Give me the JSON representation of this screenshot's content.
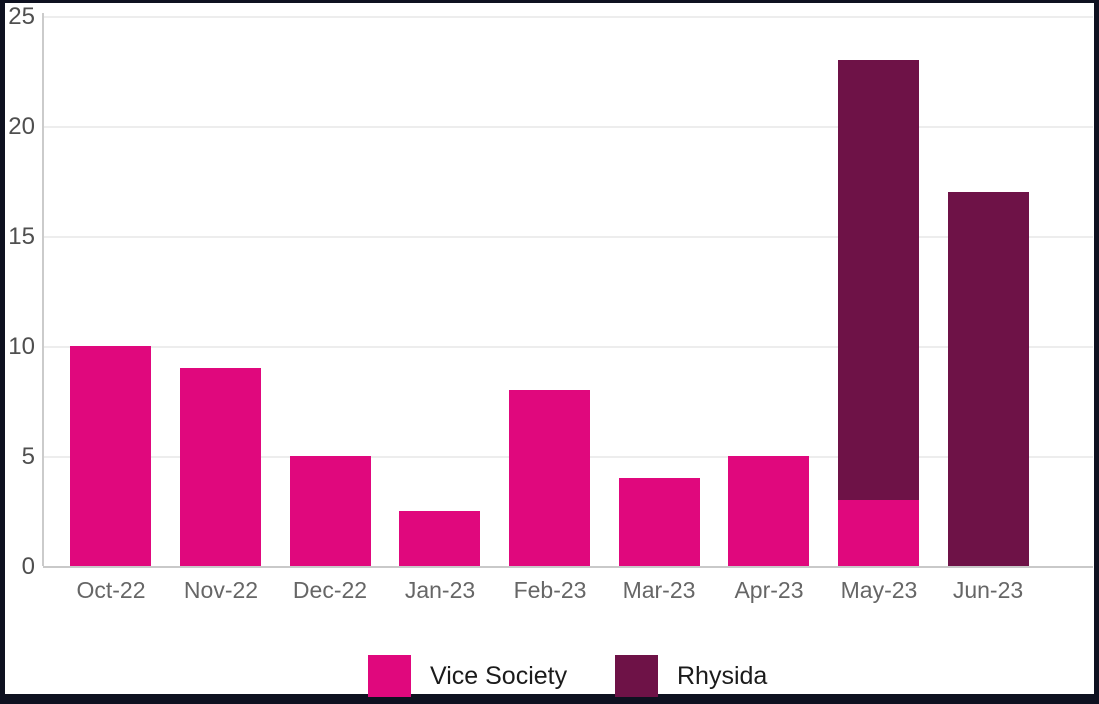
{
  "colors": {
    "frame_border": "#0e1120",
    "background": "#ffffff",
    "gridline": "#ededed",
    "axis_line": "#c9c9c9",
    "tick_text": "#4f4f4f",
    "month_text": "#666666",
    "legend_text": "#1b1b1b"
  },
  "chart_data": {
    "type": "bar",
    "subtype": "stacked-vertical",
    "title": "",
    "xlabel": "",
    "ylabel": "",
    "categories": [
      "Oct-22",
      "Nov-22",
      "Dec-22",
      "Jan-23",
      "Feb-23",
      "Mar-23",
      "Apr-23",
      "May-23",
      "Jun-23"
    ],
    "series": [
      {
        "name": "Vice Society",
        "color": "#e0087d",
        "values": [
          10,
          9,
          5,
          2.5,
          8,
          4,
          5,
          3,
          0
        ]
      },
      {
        "name": "Rhysida",
        "color": "#6e1247",
        "values": [
          0,
          0,
          0,
          0,
          0,
          0,
          0,
          20,
          17
        ]
      }
    ],
    "ylim": [
      0,
      25
    ],
    "yticks": [
      0,
      5,
      10,
      15,
      20,
      25
    ],
    "grid": "horizontal",
    "legend_position": "bottom"
  }
}
